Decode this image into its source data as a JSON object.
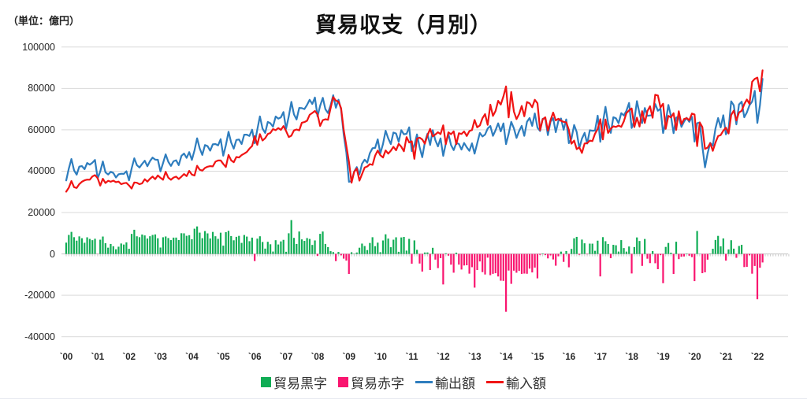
{
  "title": "貿易収支（月別）",
  "unit_label": "（単位：億円）",
  "y_axis": {
    "min": -40000,
    "max": 100000,
    "step": 20000,
    "labels": [
      "100000",
      "80000",
      "60000",
      "40000",
      "20000",
      "0",
      "-20000",
      "-40000"
    ]
  },
  "x_axis": {
    "labels": [
      "`00",
      "`01",
      "`02",
      "`03",
      "`04",
      "`05",
      "`06",
      "`07",
      "`08",
      "`09",
      "`10",
      "`11",
      "`12",
      "`13",
      "`14",
      "`15",
      "`16",
      "`17",
      "`18",
      "`19",
      "`20",
      "`21",
      "`22"
    ],
    "start": "2000-01",
    "data_end": "2022-03",
    "axis_end": "2022-12"
  },
  "colors": {
    "export_line": "#2E7DBE",
    "import_line": "#F01414",
    "surplus_bar": "#10AD55",
    "deficit_bar": "#F9156F",
    "grid": "#D9D9D9",
    "zero_axis": "#C6C6C6",
    "tick": "#C9C9C9"
  },
  "legend": [
    {
      "label": "貿易黒字",
      "swatch": "square",
      "color": "#10AD55"
    },
    {
      "label": "貿易赤字",
      "swatch": "square",
      "color": "#F9156F"
    },
    {
      "label": "輸出額",
      "swatch": "line",
      "color": "#2E7DBE"
    },
    {
      "label": "輸入額",
      "swatch": "line",
      "color": "#F01414"
    }
  ],
  "chart_data": {
    "type": "combo-bar-line",
    "title": "貿易収支（月別）",
    "ylabel": "億円",
    "ylim": [
      -40000,
      100000
    ],
    "x_monthly_start": "2000-01",
    "months": 267,
    "bar_rule": "balance = exports - imports; green if >= 0 else pink",
    "series": [
      {
        "name": "輸出額",
        "type": "line",
        "color": "#2E7DBE",
        "values": [
          35550,
          41190,
          45870,
          40360,
          38320,
          42210,
          42470,
          40960,
          43950,
          43130,
          44100,
          45420,
          36530,
          39880,
          44720,
          39470,
          38370,
          39690,
          39150,
          36940,
          38450,
          38760,
          38690,
          39940,
          35560,
          41280,
          46210,
          42900,
          41790,
          43490,
          45060,
          42400,
          44870,
          46570,
          45580,
          45500,
          39880,
          43920,
          48110,
          44500,
          42530,
          44780,
          45270,
          42910,
          47370,
          48550,
          46410,
          49180,
          45470,
          50080,
          55890,
          51000,
          47870,
          52600,
          52080,
          49900,
          52940,
          53120,
          52460,
          55470,
          47480,
          52550,
          59030,
          53860,
          50920,
          55080,
          55330,
          53120,
          57620,
          57650,
          57020,
          60050,
          53460,
          60100,
          66450,
          60610,
          58490,
          63800,
          63150,
          61480,
          66420,
          65410,
          66000,
          68570,
          60470,
          66460,
          73490,
          67460,
          64980,
          70580,
          70460,
          70020,
          72030,
          74480,
          72470,
          75590,
          66490,
          71560,
          75460,
          69910,
          68110,
          71810,
          76680,
          70640,
          74520,
          69810,
          57750,
          48950,
          34830,
          35260,
          39800,
          41970,
          38410,
          43580,
          45540,
          44110,
          48690,
          51090,
          51250,
          55410,
          48540,
          53130,
          59530,
          55890,
          53110,
          58650,
          58160,
          54220,
          59790,
          57840,
          58050,
          61160,
          49710,
          52490,
          57760,
          51560,
          46760,
          53940,
          58050,
          52650,
          59800,
          54970,
          51980,
          55860,
          47420,
          53410,
          57950,
          52660,
          50180,
          53640,
          53130,
          50440,
          53600,
          51500,
          49840,
          53460,
          48470,
          53440,
          58470,
          56770,
          57670,
          60600,
          61870,
          57060,
          59780,
          63110,
          59230,
          63110,
          53060,
          57990,
          63830,
          60690,
          56080,
          59390,
          61890,
          57050,
          63830,
          65690,
          61910,
          67900,
          61020,
          59410,
          65270,
          65520,
          57410,
          63980,
          65640,
          58810,
          64180,
          65440,
          59990,
          65020,
          53510,
          55700,
          62310,
          58890,
          51090,
          55750,
          58530,
          53320,
          59780,
          59490,
          59620,
          66790,
          54220,
          63470,
          71110,
          63290,
          58510,
          66080,
          65560,
          63200,
          68060,
          66930,
          69230,
          72960,
          60860,
          64630,
          73830,
          67820,
          63240,
          70520,
          66730,
          66920,
          67190,
          72430,
          69200,
          70240,
          58430,
          63850,
          72020,
          66570,
          58350,
          65850,
          66430,
          61410,
          63960,
          65770,
          63830,
          66290,
          54300,
          63200,
          63580,
          52020,
          41850,
          48620,
          53690,
          52320,
          60540,
          65660,
          61130,
          67050,
          57800,
          60380,
          73780,
          71810,
          62610,
          72210,
          73560,
          66060,
          68410,
          71840,
          73670,
          78810,
          63320,
          71900,
          84610
        ]
      },
      {
        "name": "輸入額",
        "type": "line",
        "color": "#F01414",
        "values": [
          30090,
          32010,
          35220,
          32270,
          31900,
          33730,
          34880,
          35560,
          35920,
          35880,
          37450,
          38080,
          36620,
          33010,
          36320,
          34280,
          35350,
          34870,
          35430,
          34690,
          34960,
          33710,
          34150,
          34360,
          33080,
          31600,
          34530,
          34380,
          33700,
          34110,
          36120,
          34960,
          36320,
          37400,
          36150,
          37930,
          36790,
          35870,
          39680,
          36820,
          35850,
          36900,
          37370,
          36210,
          37370,
          38600,
          37640,
          40120,
          38340,
          37890,
          42600,
          40710,
          40260,
          41550,
          42150,
          42430,
          42310,
          44580,
          45170,
          45210,
          43480,
          42010,
          47870,
          45220,
          44330,
          46820,
          46600,
          47790,
          48480,
          49270,
          50860,
          52170,
          56920,
          52720,
          57920,
          54820,
          55920,
          57940,
          58480,
          60330,
          59790,
          60840,
          59950,
          61770,
          59430,
          56480,
          57150,
          59700,
          60160,
          59740,
          63430,
          63720,
          64360,
          67240,
          68120,
          69070,
          67450,
          61860,
          64630,
          65080,
          64840,
          70470,
          75770,
          74120,
          73570,
          70470,
          60030,
          52160,
          44510,
          34440,
          39690,
          41280,
          35410,
          38590,
          41730,
          42250,
          43390,
          43020,
          47510,
          49960,
          47690,
          46620,
          50040,
          48470,
          49870,
          51780,
          50120,
          53190,
          51820,
          49620,
          56440,
          53890,
          54430,
          45950,
          55790,
          56200,
          55310,
          53250,
          57330,
          60400,
          56840,
          57710,
          58830,
          57910,
          62170,
          53080,
          58780,
          57860,
          59250,
          53030,
          58310,
          57980,
          59190,
          56990,
          59370,
          59870,
          64760,
          61220,
          62100,
          65570,
          67610,
          62410,
          72150,
          66690,
          69100,
          74010,
          72160,
          76130,
          80960,
          66020,
          78290,
          68780,
          65170,
          67610,
          71530,
          66540,
          73420,
          72800,
          70860,
          74510,
          72830,
          59830,
          65040,
          66050,
          59570,
          64670,
          68320,
          64510,
          65320,
          64330,
          63840,
          63620,
          59970,
          53270,
          54760,
          50650,
          51500,
          48820,
          53390,
          53510,
          54800,
          54530,
          58110,
          60380,
          65090,
          55360,
          64960,
          58470,
          60550,
          61680,
          61370,
          62060,
          61390,
          64090,
          68100,
          69370,
          70300,
          61310,
          65860,
          61560,
          69020,
          63300,
          69040,
          71360,
          65800,
          76930,
          76570,
          70800,
          72580,
          60460,
          66730,
          65960,
          68020,
          59960,
          68940,
          62780,
          65190,
          65600,
          64680,
          67840,
          67430,
          52110,
          63530,
          61320,
          50740,
          51390,
          53540,
          49830,
          53790,
          56940,
          57460,
          59550,
          61040,
          58210,
          67160,
          69260,
          64480,
          68370,
          69150,
          72410,
          74640,
          72510,
          83220,
          84630,
          85230,
          78580,
          88730
        ]
      }
    ]
  }
}
